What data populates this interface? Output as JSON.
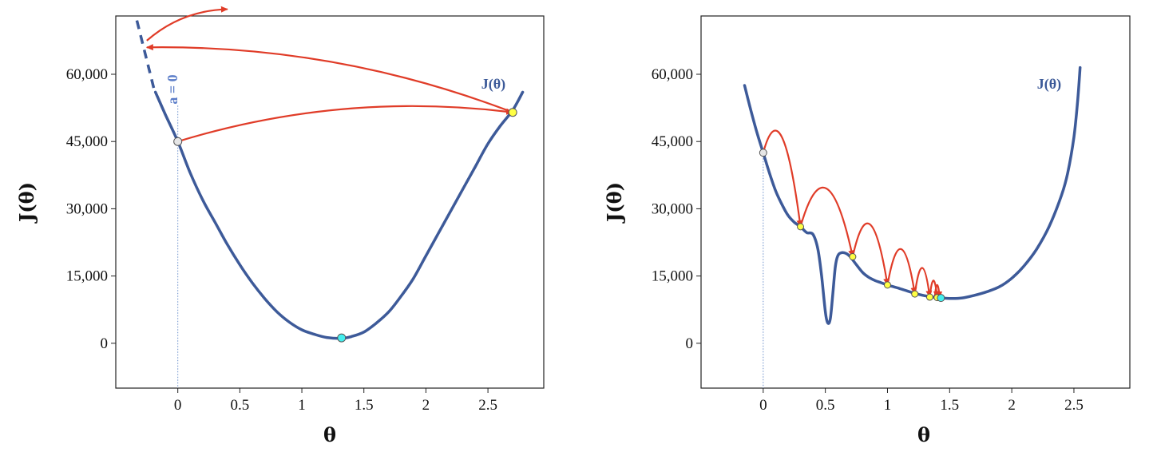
{
  "chart_data": [
    {
      "type": "line",
      "title": "",
      "xlabel": "θ",
      "ylabel": "J(θ)",
      "curve_label": "J(θ)",
      "annotation": "a = 0",
      "xlim": [
        -0.5,
        2.95
      ],
      "ylim": [
        -10000,
        73000
      ],
      "xticks": [
        "0",
        "0.5",
        "1",
        "1.5",
        "2",
        "2.5"
      ],
      "xtick_values": [
        0,
        0.5,
        1,
        1.5,
        2,
        2.5
      ],
      "yticks": [
        "0",
        "15,000",
        "30,000",
        "45,000",
        "60,000"
      ],
      "ytick_values": [
        0,
        15000,
        30000,
        45000,
        60000
      ],
      "curve": {
        "x": [
          -0.18,
          -0.1,
          0,
          0.1,
          0.2,
          0.3,
          0.4,
          0.5,
          0.6,
          0.7,
          0.8,
          0.9,
          1.0,
          1.1,
          1.2,
          1.32,
          1.4,
          1.5,
          1.6,
          1.7,
          1.8,
          1.9,
          2.0,
          2.1,
          2.2,
          2.3,
          2.4,
          2.5,
          2.6,
          2.7,
          2.78
        ],
        "y": [
          56000,
          51000,
          45000,
          38000,
          32000,
          27000,
          22000,
          17500,
          13500,
          10000,
          7000,
          4700,
          3000,
          2000,
          1300,
          1100,
          1500,
          2500,
          4500,
          7000,
          10500,
          14500,
          19500,
          24500,
          29500,
          34500,
          39500,
          44500,
          48500,
          52000,
          56000
        ]
      },
      "diverge_dashed": {
        "x": [
          -0.33,
          -0.19
        ],
        "y": [
          72000,
          56500
        ]
      },
      "points": [
        {
          "x": 0,
          "y": 45000,
          "color": "#e6e6e6"
        },
        {
          "x": 2.7,
          "y": 51500,
          "color": "#ffff44"
        },
        {
          "x": 1.32,
          "y": 1200,
          "color": "#44eeee"
        }
      ],
      "arrows": [
        {
          "from": [
            0,
            45000
          ],
          "to": [
            2.7,
            51500
          ]
        },
        {
          "from": [
            2.7,
            51500
          ],
          "to": [
            -0.25,
            66000
          ]
        },
        {
          "from": [
            -0.25,
            67500
          ],
          "to": [
            0.4,
            74500
          ]
        }
      ]
    },
    {
      "type": "line",
      "title": "",
      "xlabel": "θ",
      "ylabel": "J(θ)",
      "curve_label": "J(θ)",
      "xlim": [
        -0.5,
        2.95
      ],
      "ylim": [
        -10000,
        73000
      ],
      "xticks": [
        "0",
        "0.5",
        "1",
        "1.5",
        "2",
        "2.5"
      ],
      "xtick_values": [
        0,
        0.5,
        1,
        1.5,
        2,
        2.5
      ],
      "yticks": [
        "0",
        "15,000",
        "30,000",
        "45,000",
        "60,000"
      ],
      "ytick_values": [
        0,
        15000,
        30000,
        45000,
        60000
      ],
      "curve": {
        "x": [
          -0.15,
          -0.1,
          -0.05,
          0,
          0.05,
          0.1,
          0.15,
          0.2,
          0.25,
          0.3,
          0.35,
          0.4,
          0.44,
          0.47,
          0.5,
          0.52,
          0.54,
          0.56,
          0.58,
          0.6,
          0.63,
          0.67,
          0.7,
          0.75,
          0.8,
          0.85,
          0.9,
          0.95,
          1.0,
          1.1,
          1.2,
          1.3,
          1.4,
          1.5,
          1.6,
          1.7,
          1.8,
          1.9,
          2.0,
          2.1,
          2.2,
          2.3,
          2.4,
          2.45,
          2.5,
          2.53,
          2.55
        ],
        "y": [
          57500,
          52000,
          47000,
          42500,
          38000,
          34000,
          31000,
          28500,
          27000,
          26000,
          24700,
          24300,
          21000,
          15000,
          7000,
          4500,
          5500,
          11000,
          17000,
          19500,
          20200,
          20000,
          19300,
          17500,
          15800,
          14700,
          14000,
          13500,
          13000,
          12200,
          11300,
          10600,
          10200,
          10000,
          10100,
          10700,
          11500,
          12600,
          14500,
          17300,
          21000,
          26000,
          33000,
          38000,
          46000,
          54000,
          61500
        ]
      },
      "points": [
        {
          "x": 0,
          "y": 42500,
          "color": "#e6e6e6"
        },
        {
          "x": 0.3,
          "y": 26000,
          "color": "#ffff44"
        },
        {
          "x": 0.72,
          "y": 19300,
          "color": "#ffff44"
        },
        {
          "x": 1.0,
          "y": 13000,
          "color": "#ffff44"
        },
        {
          "x": 1.22,
          "y": 11000,
          "color": "#ffff44"
        },
        {
          "x": 1.34,
          "y": 10300,
          "color": "#ffff44"
        },
        {
          "x": 1.4,
          "y": 10200,
          "color": "#ffff44"
        },
        {
          "x": 1.43,
          "y": 10100,
          "color": "#44eeee"
        }
      ],
      "arrows": [
        {
          "from": [
            0,
            42500
          ],
          "to": [
            0.3,
            26000
          ],
          "peak": 46000
        },
        {
          "from": [
            0.3,
            26000
          ],
          "to": [
            0.72,
            19300
          ],
          "peak": 34500
        },
        {
          "from": [
            0.72,
            19300
          ],
          "to": [
            1.0,
            13000
          ],
          "peak": 26500
        },
        {
          "from": [
            1.0,
            13000
          ],
          "to": [
            1.22,
            11000
          ],
          "peak": 21000
        },
        {
          "from": [
            1.22,
            11000
          ],
          "to": [
            1.34,
            10300
          ],
          "peak": 16800
        },
        {
          "from": [
            1.34,
            10300
          ],
          "to": [
            1.4,
            10200
          ],
          "peak": 14000
        },
        {
          "from": [
            1.38,
            10200
          ],
          "to": [
            1.42,
            10100
          ],
          "peak": 13000
        }
      ]
    }
  ]
}
